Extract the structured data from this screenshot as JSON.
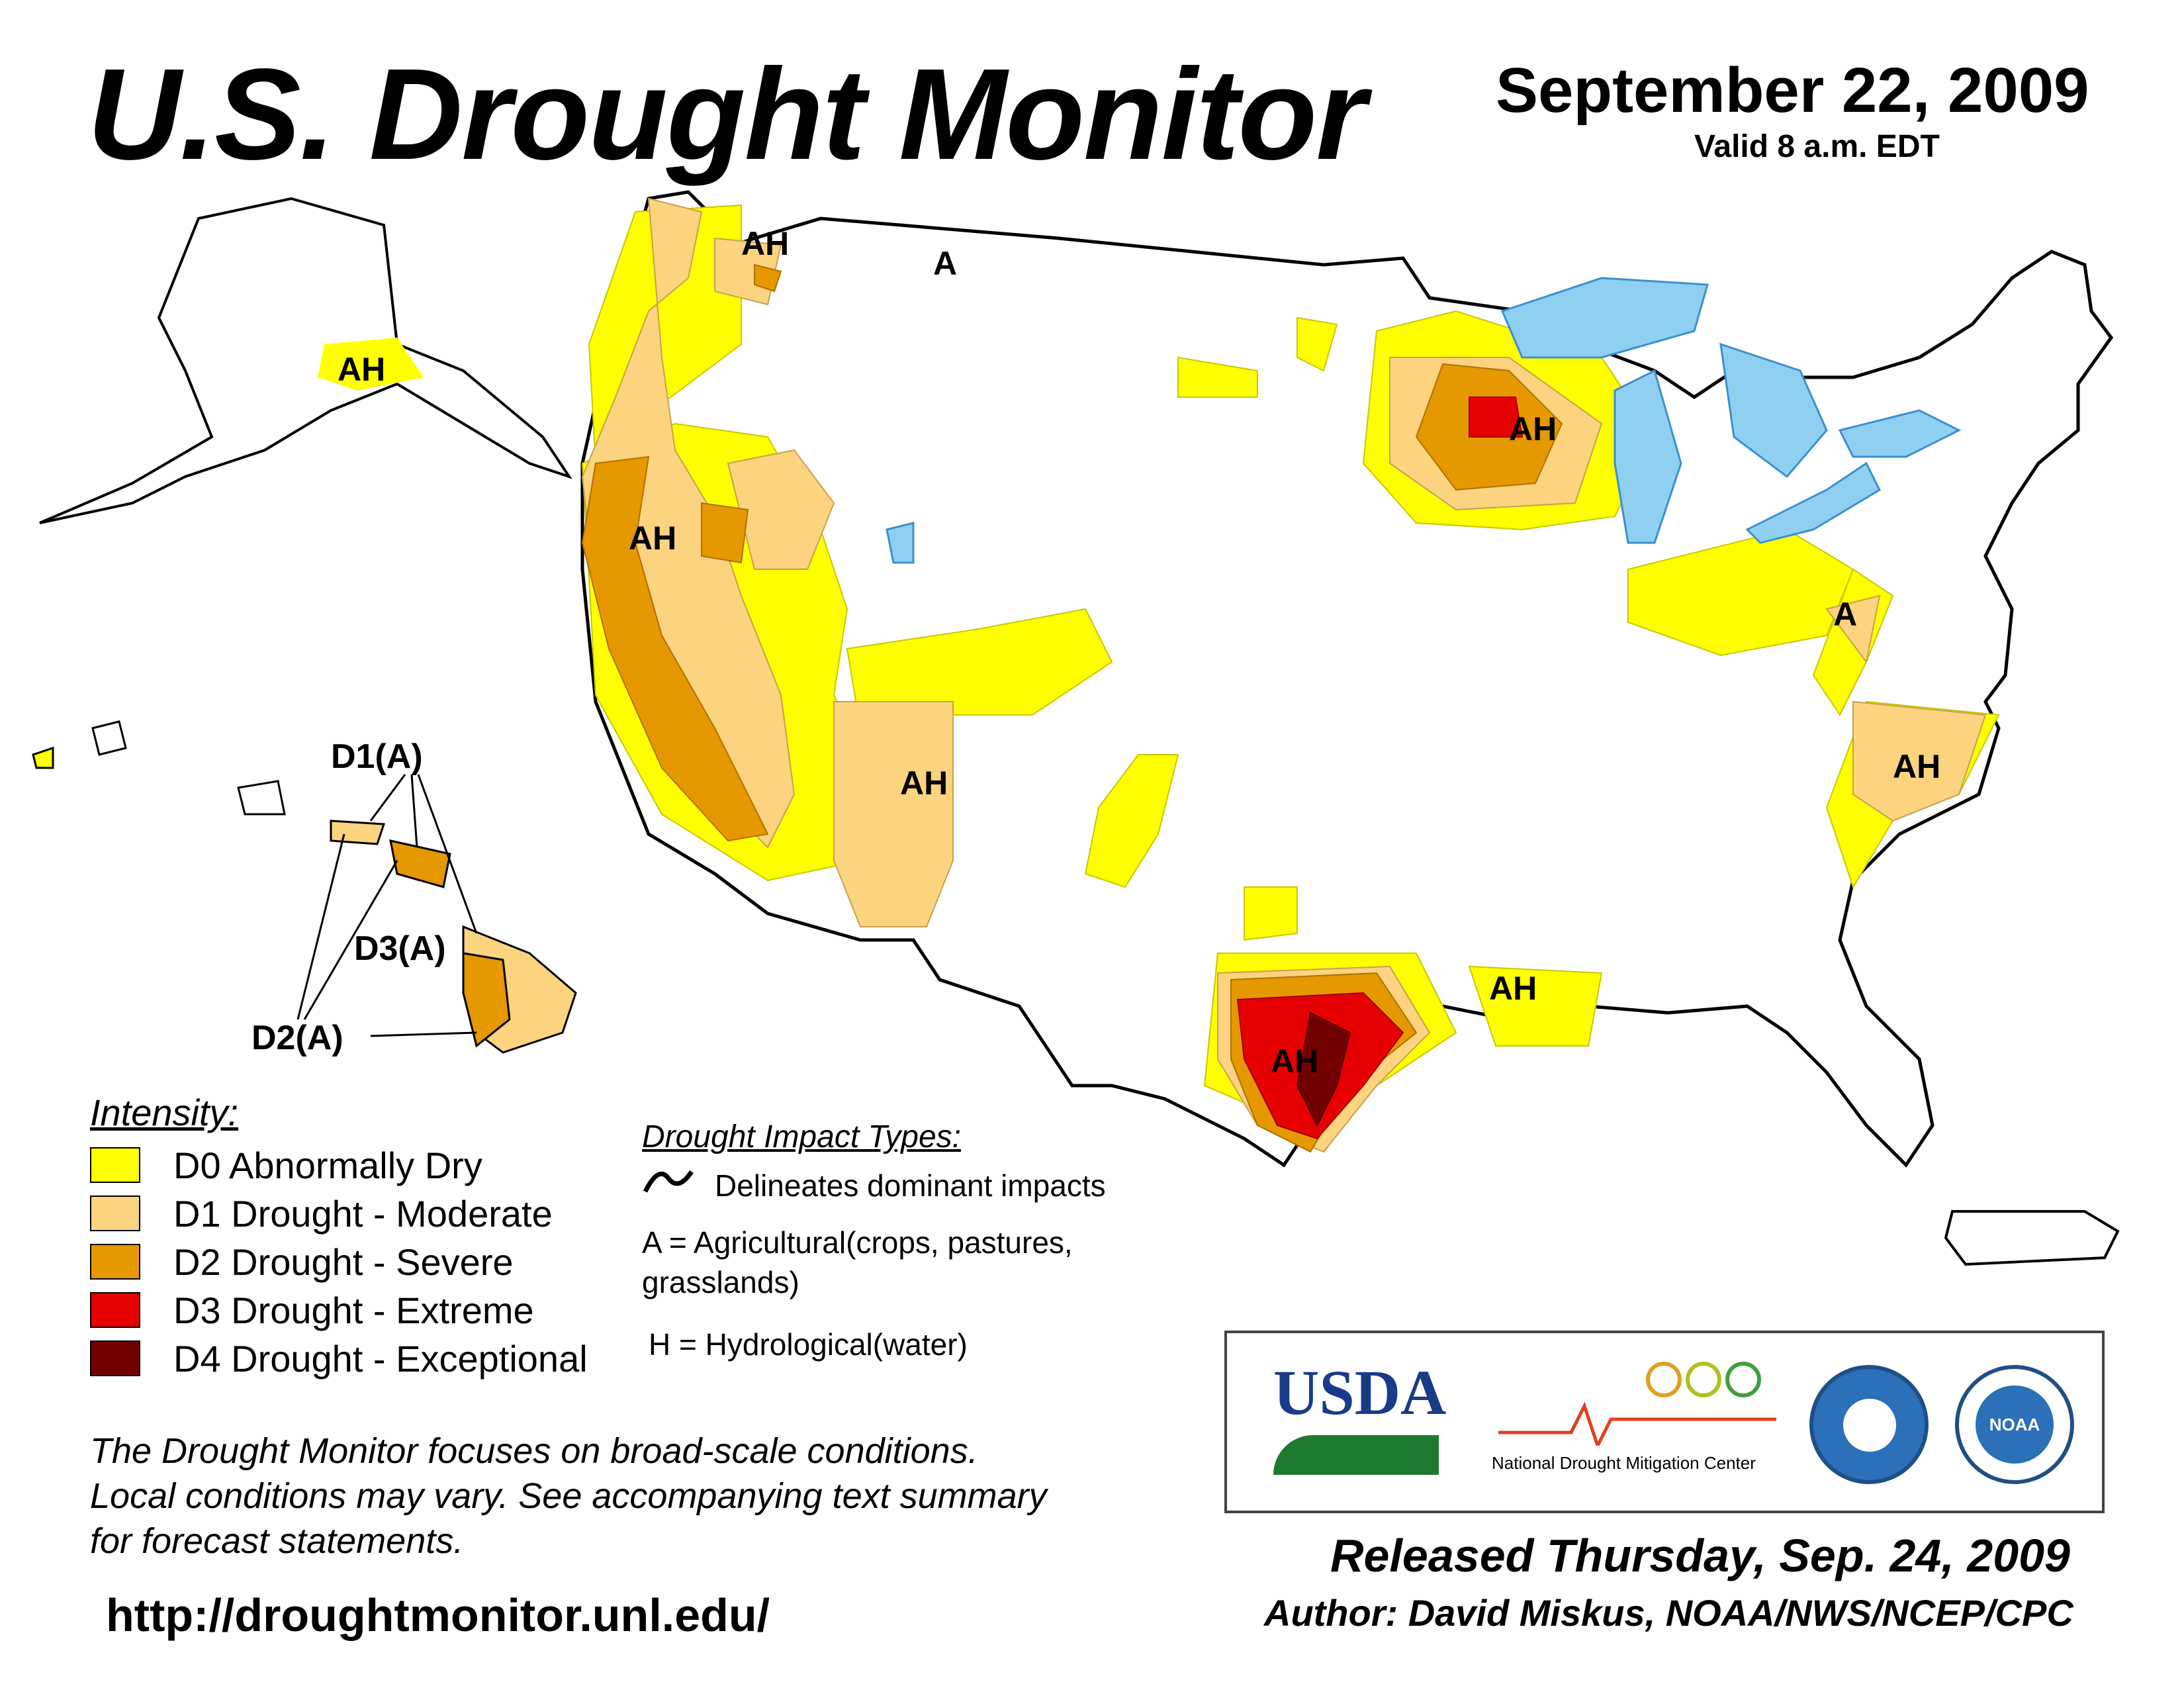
{
  "header": {
    "title": "U.S. Drought Monitor",
    "date": "September 22, 2009",
    "valid": "Valid 8 a.m. EDT"
  },
  "map_labels": {
    "alaska": "AH",
    "wa": "AH",
    "mt": "A",
    "ca": "AH",
    "az": "AH",
    "wi": "AH",
    "pa": "A",
    "nc": "AH",
    "tx": "AH",
    "la": "AH",
    "hawaii_d1": "D1(A)",
    "hawaii_d2": "D2(A)",
    "hawaii_d3": "D3(A)"
  },
  "legend": {
    "title": "Intensity:",
    "items": [
      {
        "label": "D0 Abnormally Dry",
        "color": "#FFFF00"
      },
      {
        "label": "D1 Drought - Moderate",
        "color": "#FCD37F"
      },
      {
        "label": "D2 Drought - Severe",
        "color": "#E69800"
      },
      {
        "label": "D3 Drought - Extreme",
        "color": "#E60000"
      },
      {
        "label": "D4 Drought - Exceptional",
        "color": "#730000"
      }
    ]
  },
  "impacts": {
    "title": "Drought Impact Types:",
    "line_desc": "Delineates dominant impacts",
    "a_line1": "A = Agricultural(crops, pastures,",
    "a_line2": "grasslands)",
    "h": "H = Hydrological(water)"
  },
  "note": {
    "line1": "The Drought Monitor focuses on broad-scale conditions.",
    "line2": "Local conditions may vary. See accompanying text summary",
    "line3": "for forecast statements."
  },
  "url": "http://droughtmonitor.unl.edu/",
  "logos": {
    "usda": "USDA",
    "ndmc": "National Drought Mitigation Center",
    "noaa": "NOAA"
  },
  "footer": {
    "released": "Released Thursday, Sep. 24, 2009",
    "author": "Author: David Miskus, NOAA/NWS/NCEP/CPC"
  },
  "colors": {
    "water": "#8fd0f0",
    "rivers": "#2b8fe0",
    "borders": "#000000",
    "counties": "#9a9a9a"
  }
}
